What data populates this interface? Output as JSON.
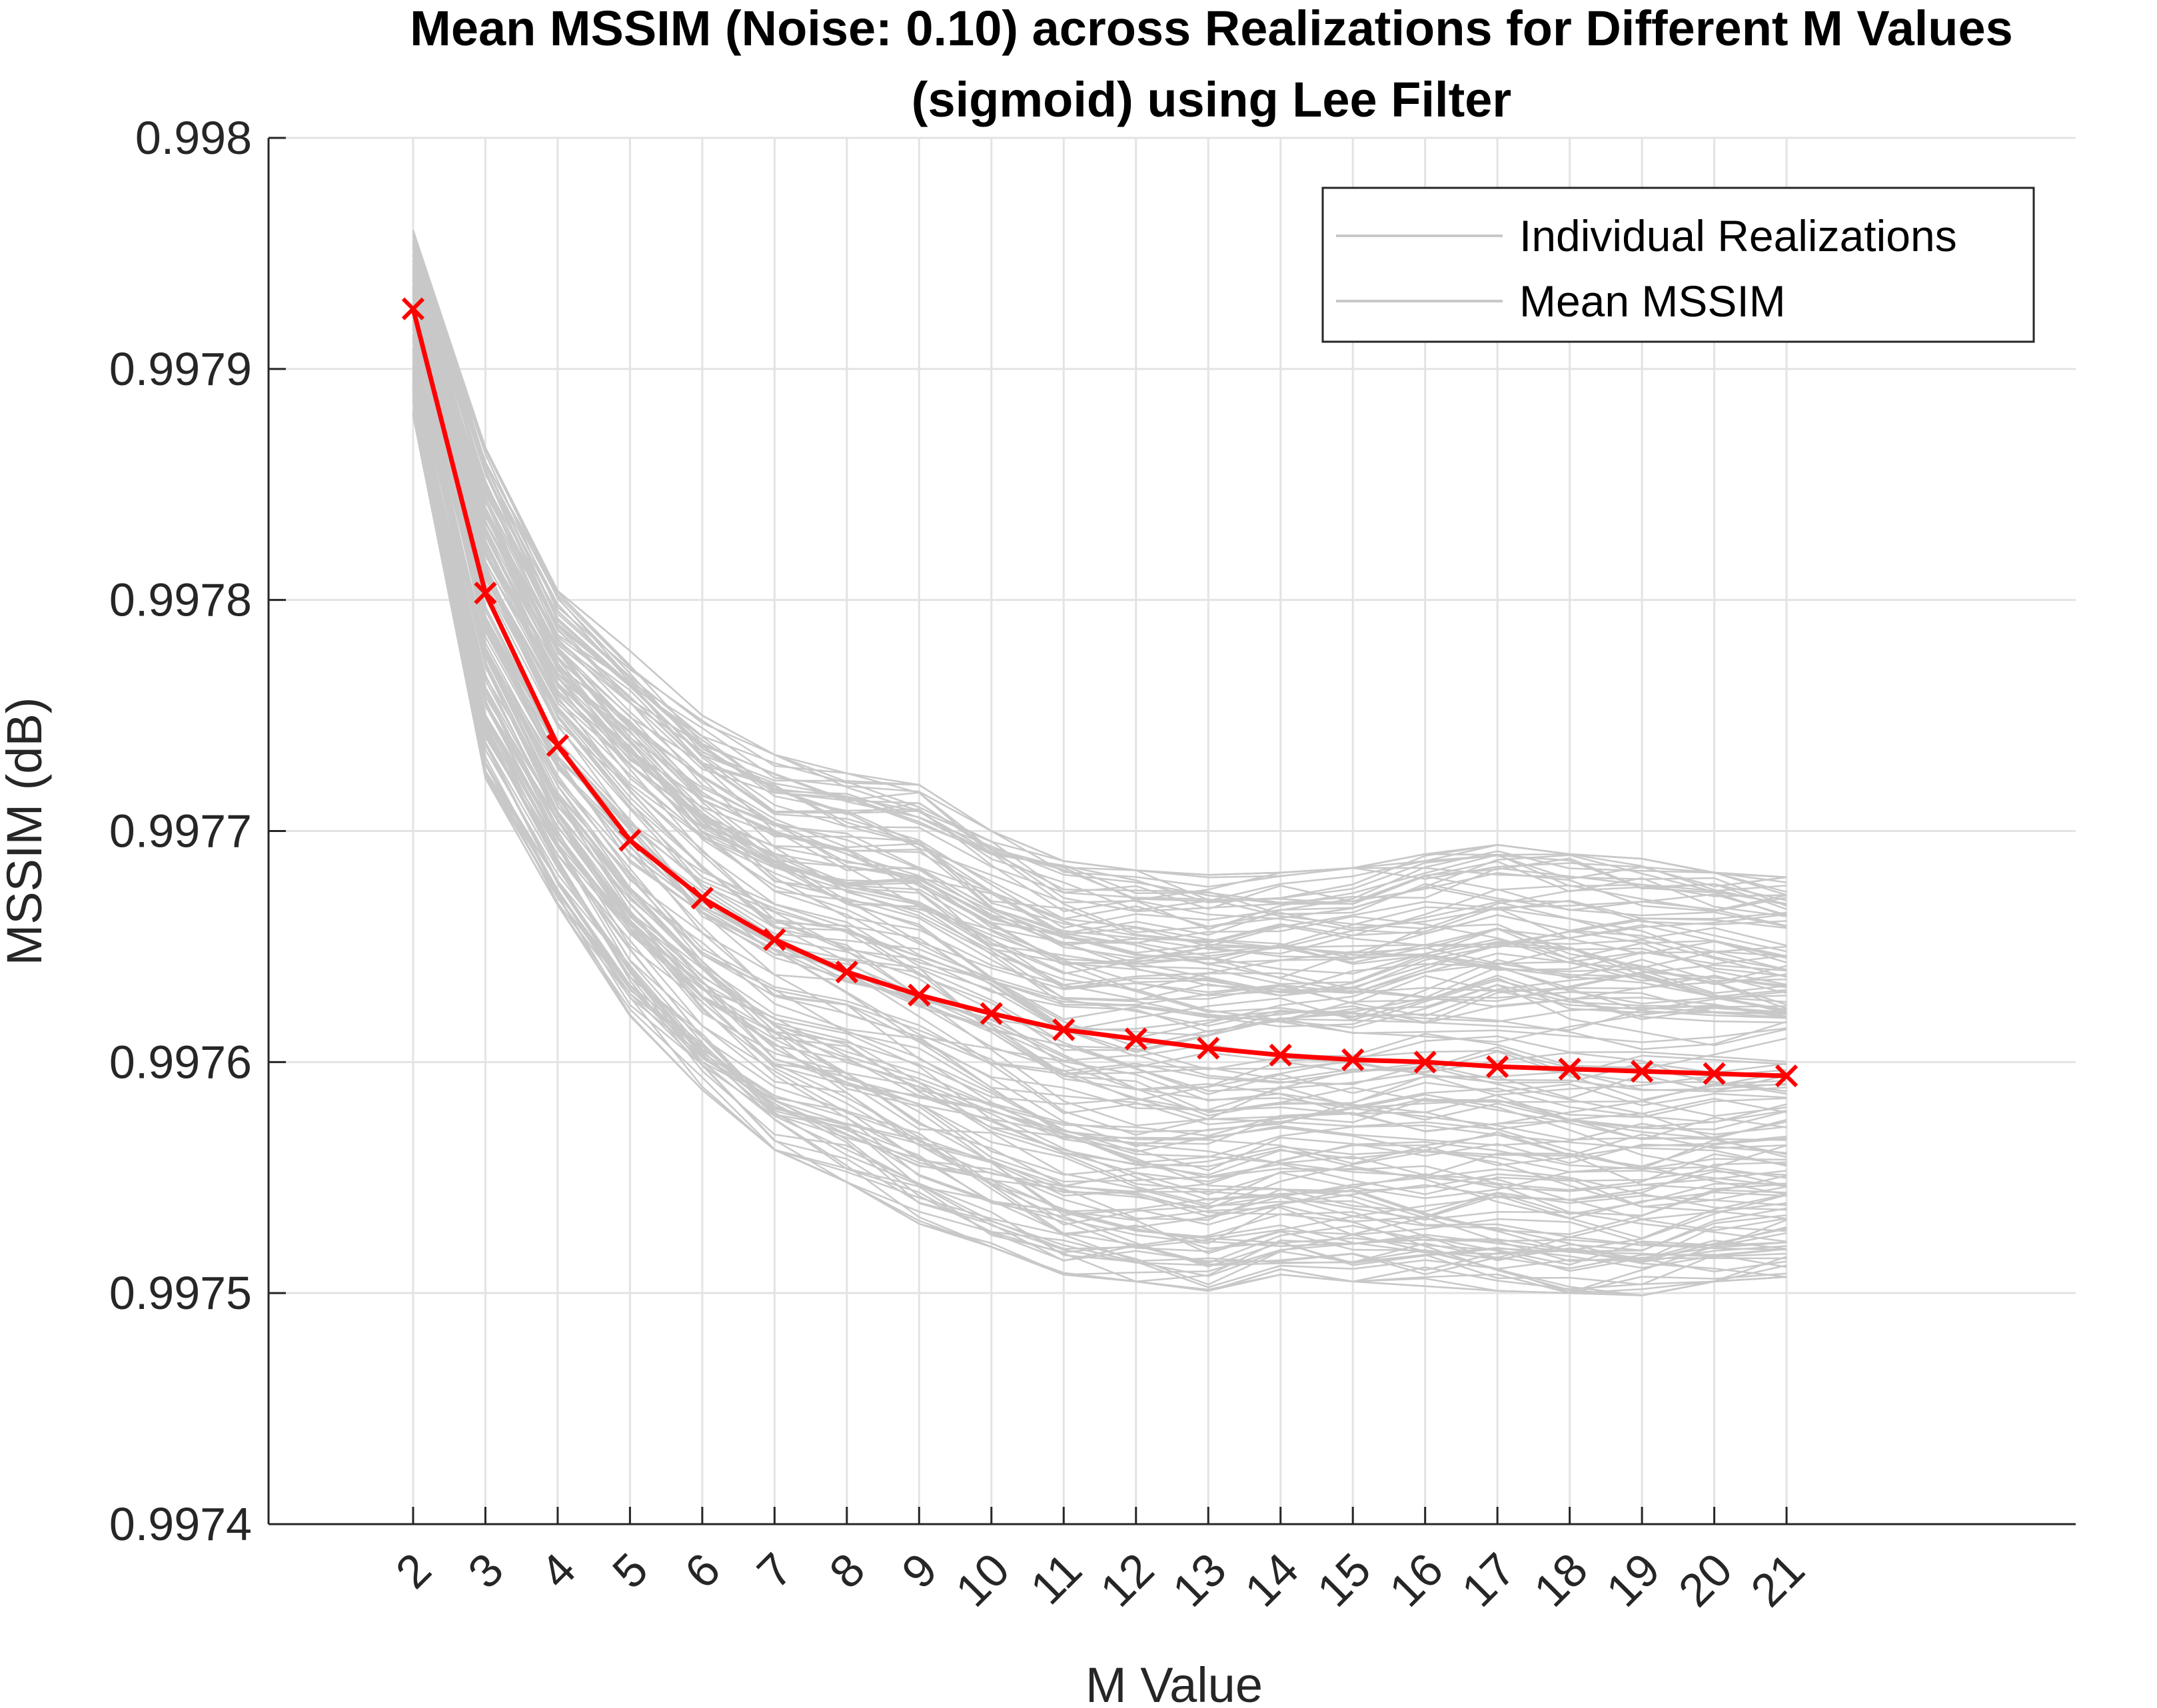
{
  "chart_data": {
    "type": "line",
    "title": "Mean MSSIM (Noise: 0.10) across Realizations for Different M Values",
    "subtitle": "(sigmoid) using Lee Filter",
    "xlabel": "M Value",
    "ylabel": "MSSIM (dB)",
    "x": [
      2,
      3,
      4,
      5,
      6,
      7,
      8,
      9,
      10,
      11,
      12,
      13,
      14,
      15,
      16,
      17,
      18,
      19,
      20,
      21
    ],
    "x_tick_labels": [
      "2",
      "3",
      "4",
      "5",
      "6",
      "7",
      "8",
      "9",
      "10",
      "11",
      "12",
      "13",
      "14",
      "15",
      "16",
      "17",
      "18",
      "19",
      "20",
      "21"
    ],
    "xlim": [
      0,
      25
    ],
    "ylim": [
      0.9974,
      0.998
    ],
    "y_ticks": [
      0.9974,
      0.9975,
      0.9976,
      0.9977,
      0.9978,
      0.9979,
      0.998
    ],
    "y_tick_labels": [
      "0.9974",
      "0.9975",
      "0.9976",
      "0.9977",
      "0.9978",
      "0.9979",
      "0.998"
    ],
    "grid": true,
    "legend_placement": "top-right",
    "legend": [
      "Individual Realizations",
      "Mean MSSIM"
    ],
    "series": [
      {
        "name": "Mean MSSIM",
        "color": "#ff0000",
        "marker": "x",
        "values": [
          0.997926,
          0.997803,
          0.997737,
          0.997696,
          0.997671,
          0.997653,
          0.997639,
          0.997629,
          0.997621,
          0.997614,
          0.99761,
          0.997606,
          0.997603,
          0.997601,
          0.9976,
          0.997598,
          0.997597,
          0.997596,
          0.997595,
          0.997594
        ]
      },
      {
        "name": "Individual Realizations",
        "color": "#c8c8c8",
        "note_count": 150,
        "upper_envelope": [
          0.99796,
          0.997866,
          0.997804,
          0.997778,
          0.99775,
          0.997733,
          0.997725,
          0.99772,
          0.9977,
          0.997687,
          0.997683,
          0.997681,
          0.997682,
          0.997684,
          0.99769,
          0.997694,
          0.99769,
          0.997688,
          0.997682,
          0.99768
        ],
        "lower_envelope": [
          0.99788,
          0.997723,
          0.997668,
          0.99762,
          0.997588,
          0.997562,
          0.997548,
          0.99753,
          0.99752,
          0.997508,
          0.997505,
          0.997501,
          0.997508,
          0.997505,
          0.997503,
          0.997501,
          0.9975,
          0.997499,
          0.997505,
          0.997507
        ]
      }
    ]
  }
}
